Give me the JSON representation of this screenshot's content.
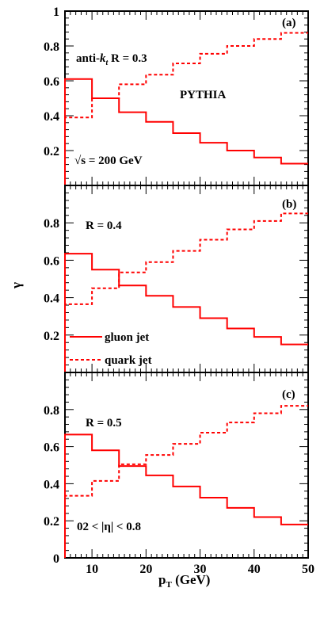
{
  "colors": {
    "curve": "#ff0000",
    "axis": "#000000"
  },
  "chart_data": {
    "type": "line",
    "layout": "three stacked panels sharing the x axis",
    "xlabel": "p",
    "xlabel_sub": "T",
    "xlabel_unit": " (GeV)",
    "ylabel": "γ",
    "xlim": [
      5,
      50
    ],
    "x_ticks": [
      10,
      20,
      30,
      40,
      50
    ],
    "bin_edges": [
      5,
      10,
      15,
      20,
      25,
      30,
      35,
      40,
      45,
      50
    ],
    "legend": {
      "gluon_label": "gluon jet",
      "quark_label": "quark jet",
      "placement": "lower-left of panel (b)"
    },
    "panels": [
      {
        "id": "a",
        "tag": "(a)",
        "ylim": [
          0,
          1
        ],
        "y_ticks": [
          {
            "v": 0.2,
            "t": "0.2"
          },
          {
            "v": 0.4,
            "t": "0.4"
          },
          {
            "v": 0.6,
            "t": "0.6"
          },
          {
            "v": 0.8,
            "t": "0.8"
          },
          {
            "v": 1.0,
            "t": "1"
          }
        ],
        "annotations": {
          "jet_label_pre": "anti-",
          "jet_label_k": "k",
          "jet_label_sub": "t",
          "jet_label_post": " R = 0.3",
          "generator": "PYTHIA",
          "energy": "√s = 200 GeV"
        },
        "series": [
          {
            "name": "gluon jet",
            "style": "solid",
            "values": [
              0.61,
              0.5,
              0.42,
              0.365,
              0.3,
              0.245,
              0.2,
              0.16,
              0.125
            ]
          },
          {
            "name": "quark jet",
            "style": "dashed",
            "values": [
              0.39,
              0.5,
              0.58,
              0.635,
              0.7,
              0.755,
              0.8,
              0.84,
              0.875
            ]
          }
        ]
      },
      {
        "id": "b",
        "tag": "(b)",
        "ylim": [
          0,
          1
        ],
        "y_ticks": [
          {
            "v": 0.2,
            "t": "0.2"
          },
          {
            "v": 0.4,
            "t": "0.4"
          },
          {
            "v": 0.6,
            "t": "0.6"
          },
          {
            "v": 0.8,
            "t": "0.8"
          }
        ],
        "annotations": {
          "radius": "R = 0.4"
        },
        "series": [
          {
            "name": "gluon jet",
            "style": "solid",
            "values": [
              0.635,
              0.55,
              0.465,
              0.41,
              0.35,
              0.29,
              0.235,
              0.19,
              0.15
            ]
          },
          {
            "name": "quark jet",
            "style": "dashed",
            "values": [
              0.365,
              0.45,
              0.535,
              0.59,
              0.65,
              0.71,
              0.765,
              0.81,
              0.85
            ]
          }
        ]
      },
      {
        "id": "c",
        "tag": "(c)",
        "ylim": [
          0,
          1
        ],
        "y_ticks": [
          {
            "v": 0.0,
            "t": "0"
          },
          {
            "v": 0.2,
            "t": "0.2"
          },
          {
            "v": 0.4,
            "t": "0.4"
          },
          {
            "v": 0.6,
            "t": "0.6"
          },
          {
            "v": 0.8,
            "t": "0.8"
          }
        ],
        "annotations": {
          "radius": "R = 0.5",
          "eta_cut": "02 < |η| < 0.8"
        },
        "series": [
          {
            "name": "gluon jet",
            "style": "solid",
            "values": [
              0.665,
              0.58,
              0.495,
              0.445,
              0.385,
              0.325,
              0.27,
              0.22,
              0.18
            ]
          },
          {
            "name": "quark jet",
            "style": "dashed",
            "values": [
              0.335,
              0.415,
              0.505,
              0.555,
              0.615,
              0.675,
              0.73,
              0.78,
              0.82
            ]
          }
        ]
      }
    ]
  }
}
